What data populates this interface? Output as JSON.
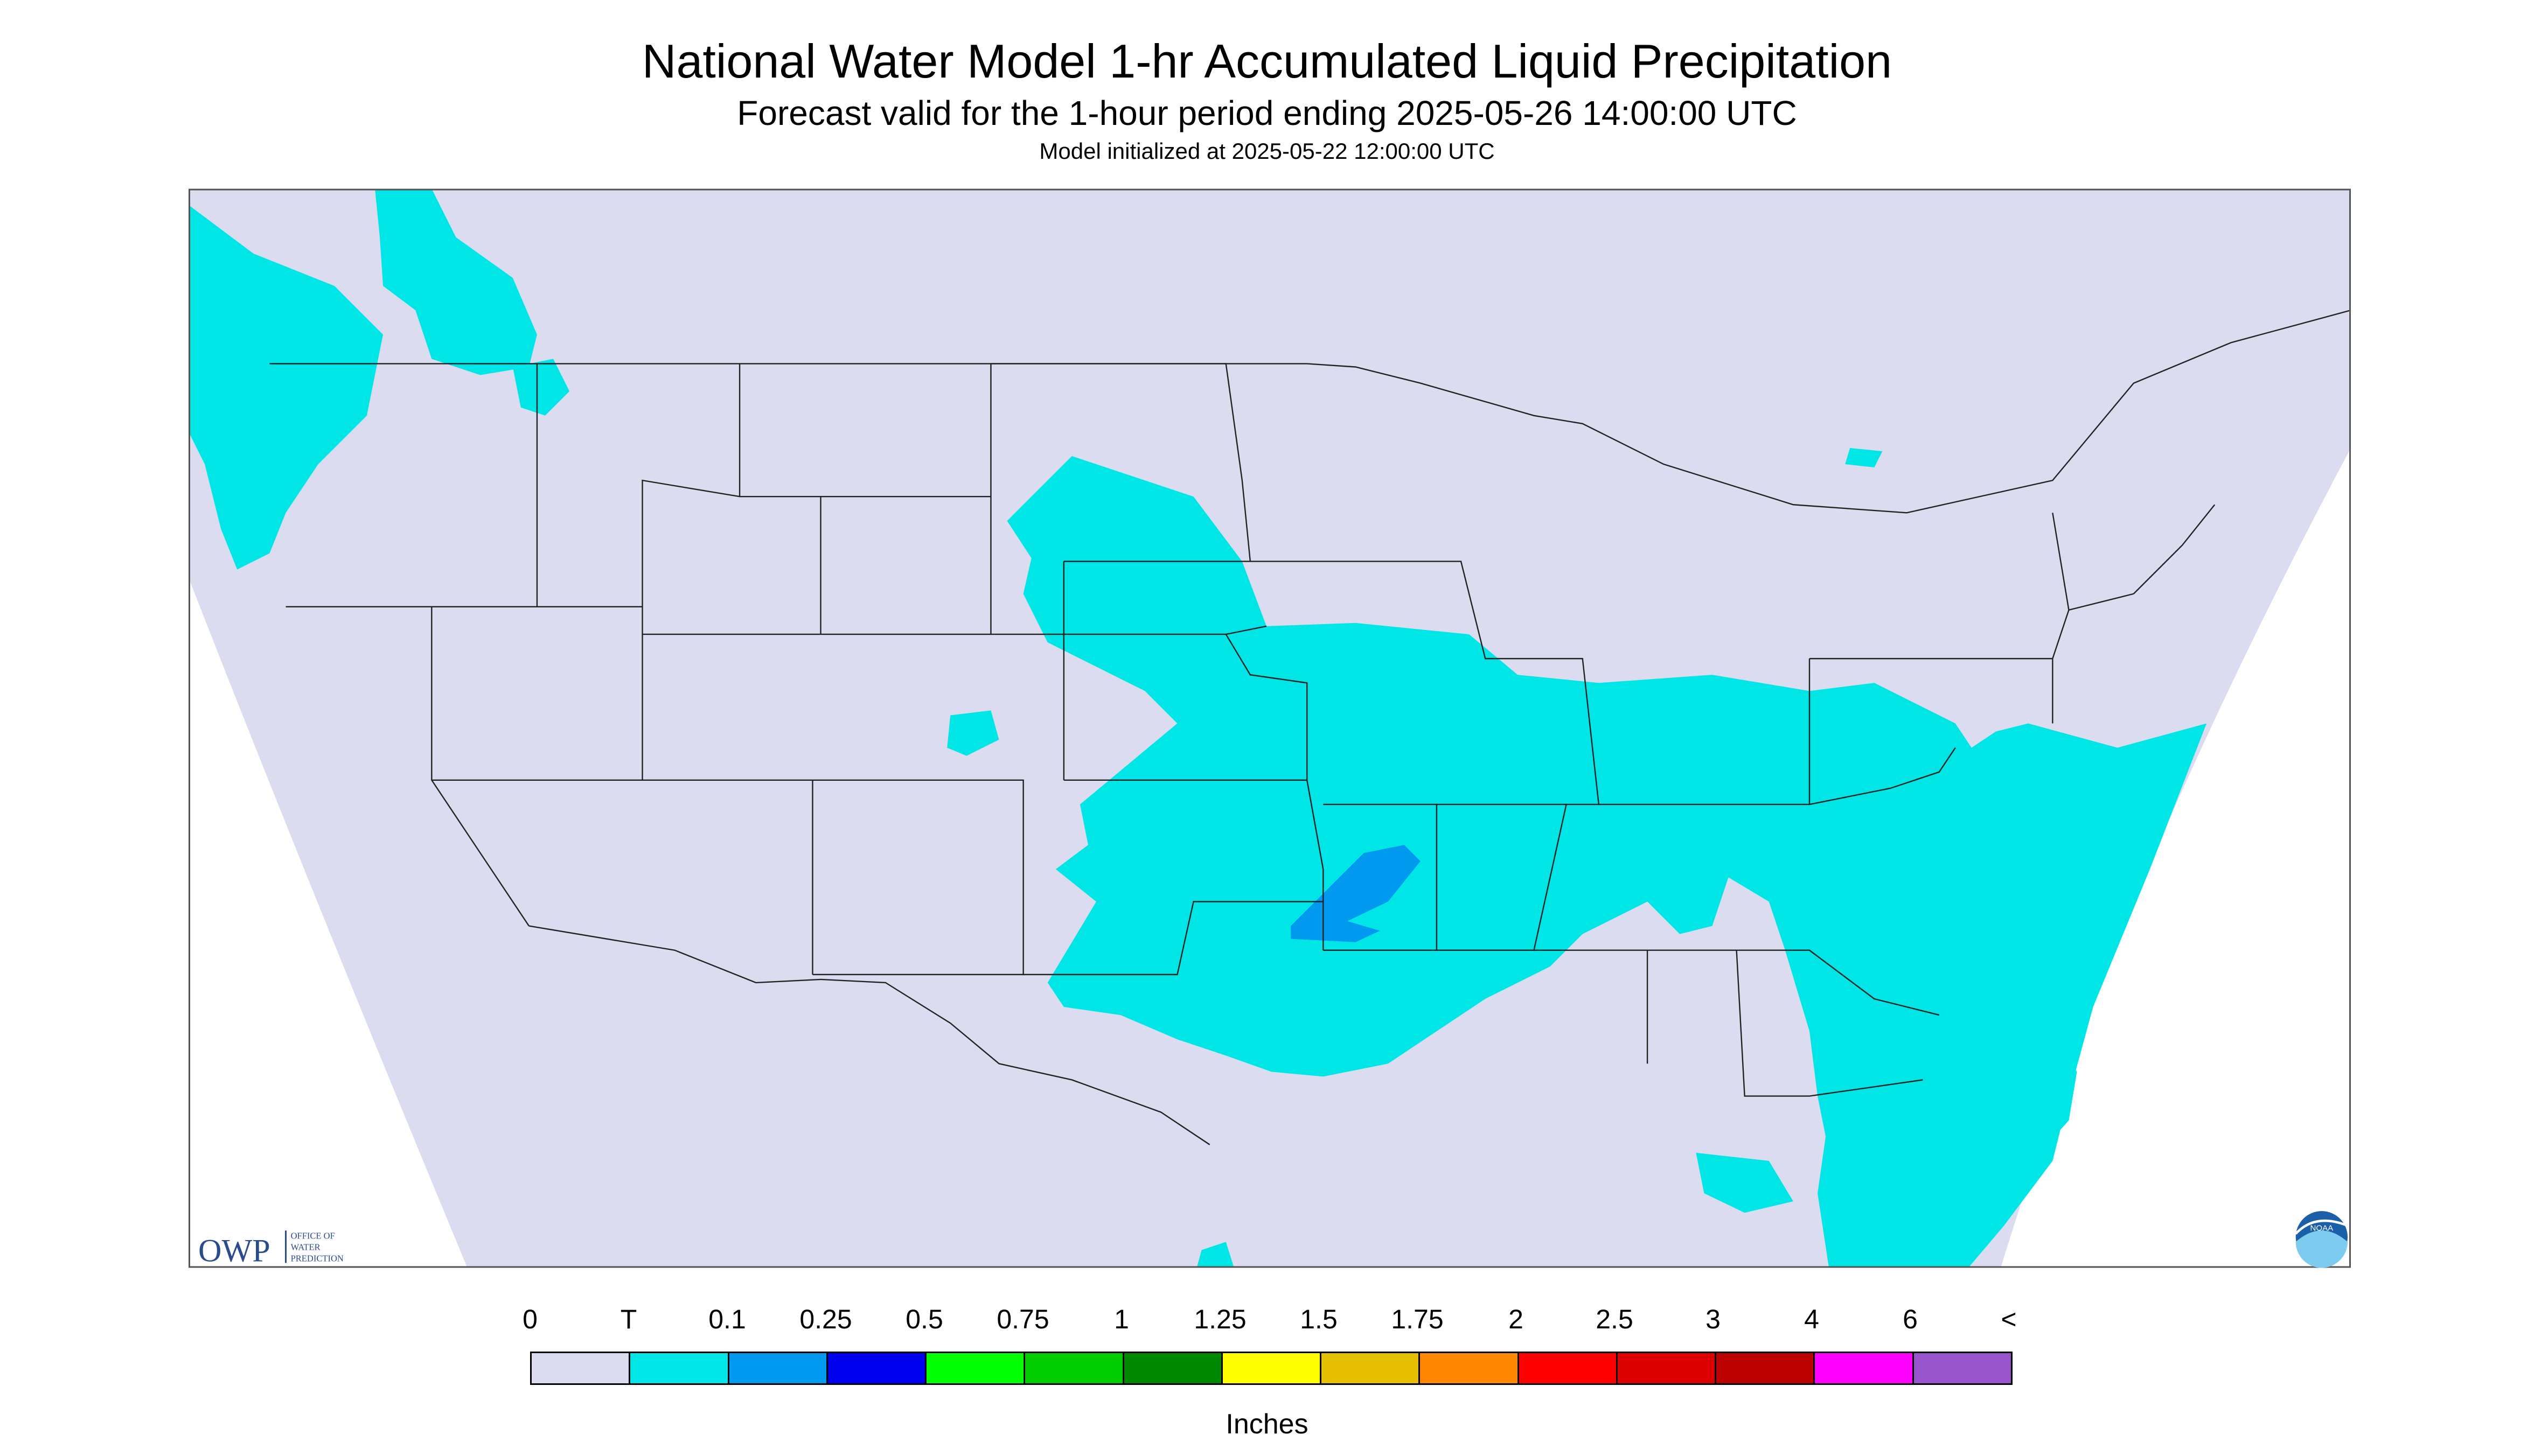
{
  "header": {
    "title": "National Water Model 1-hr Accumulated Liquid Precipitation",
    "subtitle": "Forecast valid for the 1-hour period ending 2025-05-26 14:00:00 UTC",
    "init": "Model initialized at 2025-05-22 12:00:00 UTC"
  },
  "logos": {
    "owp_text": "OWP",
    "owp_sub": [
      "OFFICE OF",
      "WATER",
      "PREDICTION"
    ],
    "noaa_text": "NOAA"
  },
  "legend": {
    "labels": [
      "0",
      "T",
      "0.1",
      "0.25",
      "0.5",
      "0.75",
      "1",
      "1.25",
      "1.5",
      "1.75",
      "2",
      "2.5",
      "3",
      "4",
      "6",
      "<"
    ],
    "colors": [
      "#dcdcf0",
      "#00e6e6",
      "#0099f0",
      "#0000f0",
      "#00ff00",
      "#00cc00",
      "#008800",
      "#ffff00",
      "#e6c000",
      "#ff8800",
      "#ff0000",
      "#dd0000",
      "#bb0000",
      "#ff00ff",
      "#9955cc"
    ],
    "unit": "Inches"
  },
  "colors": {
    "background_field": "#dcdcf0",
    "light_precip": "#00e6e6",
    "moderate_precip": "#0099f0"
  }
}
